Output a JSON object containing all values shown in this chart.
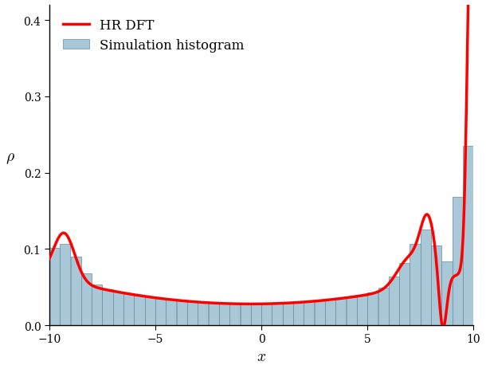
{
  "title": "",
  "xlabel": "$x$",
  "ylabel": "$\\rho$",
  "xlim": [
    -10,
    10
  ],
  "ylim": [
    0,
    0.42
  ],
  "yticks": [
    0.0,
    0.1,
    0.2,
    0.3,
    0.4
  ],
  "xticks": [
    -10,
    -5,
    0,
    5,
    10
  ],
  "bar_color": "#a8c8d8",
  "bar_edge_color": "#6a8a9a",
  "line_color": "red",
  "line_width": 2.5,
  "legend_labels": [
    "HR DFT",
    "Simulation histogram"
  ],
  "background_color": "white",
  "figsize": [
    6.1,
    4.64
  ],
  "dpi": 100
}
